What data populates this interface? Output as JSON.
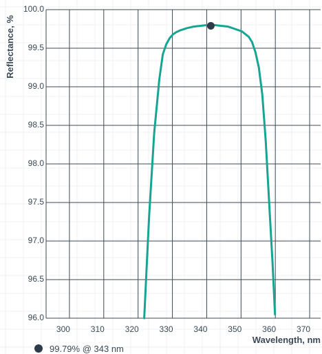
{
  "chart_data": {
    "type": "line",
    "xlabel": "Wavelength, nm",
    "ylabel": "Reflectance, %",
    "xlim": [
      295,
      375
    ],
    "ylim": [
      96.0,
      100.0
    ],
    "x_ticks": [
      300,
      310,
      320,
      330,
      340,
      350,
      360,
      370
    ],
    "y_ticks": [
      "96.0",
      "96.5",
      "97.0",
      "97.5",
      "98.0",
      "98.5",
      "99.0",
      "99.5",
      "100.0"
    ],
    "grid": true,
    "series": [
      {
        "color": "#17a593",
        "x": [
          323.6,
          325,
          326.5,
          328,
          329,
          330,
          331,
          332,
          333,
          334,
          336,
          338,
          340,
          342,
          343,
          344,
          346,
          348,
          350,
          352,
          354,
          355,
          356,
          357,
          358,
          359,
          360,
          361,
          361.7
        ],
        "y": [
          96.0,
          97.3,
          98.4,
          99.1,
          99.42,
          99.55,
          99.63,
          99.68,
          99.71,
          99.73,
          99.76,
          99.78,
          99.79,
          99.8,
          99.8,
          99.8,
          99.79,
          99.78,
          99.75,
          99.72,
          99.65,
          99.58,
          99.45,
          99.25,
          98.9,
          98.3,
          97.5,
          96.7,
          96.05
        ]
      }
    ],
    "marker": {
      "x": 343,
      "y": 99.79,
      "color": "#2f3b48"
    },
    "legend": {
      "text": "99.79% @ 343 nm",
      "placement": "bottom-left"
    }
  }
}
